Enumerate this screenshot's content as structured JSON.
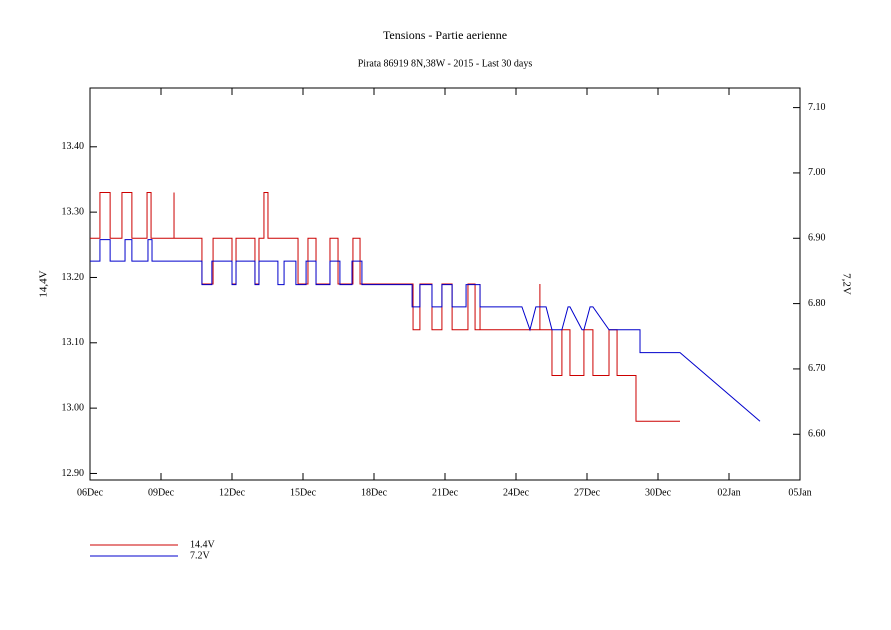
{
  "chart_data": {
    "type": "line",
    "title": "Tensions - Partie aerienne",
    "subtitle": "Pirata 86919 8N,38W - 2015 - Last 30 days",
    "ylabel": "14,4V",
    "y2label": "7,2V",
    "xlim": [
      0,
      30
    ],
    "xticks": [
      {
        "value": 0,
        "label": "06Dec"
      },
      {
        "value": 3,
        "label": "09Dec"
      },
      {
        "value": 6,
        "label": "12Dec"
      },
      {
        "value": 9,
        "label": "15Dec"
      },
      {
        "value": 12,
        "label": "18Dec"
      },
      {
        "value": 15,
        "label": "21Dec"
      },
      {
        "value": 18,
        "label": "24Dec"
      },
      {
        "value": 21,
        "label": "27Dec"
      },
      {
        "value": 24,
        "label": "30Dec"
      },
      {
        "value": 27,
        "label": "02Jan"
      },
      {
        "value": 30,
        "label": "05Jan"
      }
    ],
    "ylim": [
      12.89,
      13.49
    ],
    "yticks": [
      {
        "value": 12.9,
        "label": "12.90"
      },
      {
        "value": 13.0,
        "label": "13.00"
      },
      {
        "value": 13.1,
        "label": "13.10"
      },
      {
        "value": 13.2,
        "label": "13.20"
      },
      {
        "value": 13.3,
        "label": "13.30"
      },
      {
        "value": 13.4,
        "label": "13.40"
      }
    ],
    "y2lim": [
      6.53,
      7.13
    ],
    "y2ticks": [
      {
        "value": 6.6,
        "label": "6.60"
      },
      {
        "value": 6.7,
        "label": "6.70"
      },
      {
        "value": 6.8,
        "label": "6.80"
      },
      {
        "value": 6.9,
        "label": "6.90"
      },
      {
        "value": 7.0,
        "label": "7.00"
      },
      {
        "value": 7.1,
        "label": "7.10"
      }
    ],
    "legend": "bottom-left",
    "series": [
      {
        "name": "14.4V",
        "color": "#cc0000",
        "x": [
          0,
          0.42,
          0.42,
          0.85,
          0.85,
          1.35,
          1.35,
          1.77,
          1.77,
          2.41,
          2.41,
          2.58,
          2.58,
          3.55,
          3.55,
          3.55,
          4.73,
          4.73,
          5.2,
          5.2,
          6.0,
          6.0,
          6.17,
          6.17,
          6.97,
          6.97,
          7.14,
          7.14,
          7.35,
          7.35,
          7.52,
          7.52,
          8.79,
          8.79,
          9.21,
          9.21,
          9.55,
          9.55,
          10.14,
          10.14,
          10.48,
          10.48,
          11.11,
          11.11,
          11.41,
          11.41,
          13.65,
          13.65,
          13.94,
          13.94,
          14.45,
          14.45,
          14.87,
          14.87,
          15.3,
          15.3,
          15.97,
          15.97,
          16.27,
          16.27,
          16.48,
          16.48,
          16.48,
          19.01,
          19.01,
          19.01,
          19.52,
          19.52,
          19.94,
          19.94,
          20.28,
          20.28,
          20.87,
          20.87,
          21.25,
          21.25,
          21.93,
          21.93,
          22.27,
          22.27,
          23.07,
          23.07,
          24.93
        ],
        "values": [
          13.26,
          13.26,
          13.33,
          13.33,
          13.26,
          13.26,
          13.33,
          13.33,
          13.26,
          13.26,
          13.33,
          13.33,
          13.26,
          13.26,
          13.33,
          13.26,
          13.26,
          13.19,
          13.19,
          13.26,
          13.26,
          13.19,
          13.19,
          13.26,
          13.26,
          13.19,
          13.19,
          13.26,
          13.26,
          13.33,
          13.33,
          13.26,
          13.26,
          13.19,
          13.19,
          13.26,
          13.26,
          13.19,
          13.19,
          13.26,
          13.26,
          13.19,
          13.19,
          13.26,
          13.26,
          13.19,
          13.19,
          13.12,
          13.12,
          13.19,
          13.19,
          13.12,
          13.12,
          13.19,
          13.19,
          13.12,
          13.12,
          13.19,
          13.19,
          13.12,
          13.12,
          13.19,
          13.12,
          13.12,
          13.19,
          13.12,
          13.12,
          13.05,
          13.05,
          13.12,
          13.12,
          13.05,
          13.05,
          13.12,
          13.12,
          13.05,
          13.05,
          13.12,
          13.12,
          13.05,
          13.05,
          12.98,
          12.98
        ]
      },
      {
        "name": "7.2V",
        "color": "#0000cc",
        "axis": "y2",
        "x": [
          0,
          0.42,
          0.42,
          0.85,
          0.85,
          1.48,
          1.48,
          1.77,
          1.77,
          2.45,
          2.45,
          2.62,
          2.62,
          4.73,
          4.73,
          5.15,
          5.15,
          6.0,
          6.0,
          6.17,
          6.17,
          6.97,
          6.97,
          7.14,
          7.14,
          7.94,
          7.94,
          8.2,
          8.2,
          8.7,
          8.7,
          9.13,
          9.13,
          9.55,
          9.55,
          10.14,
          10.14,
          10.56,
          10.56,
          11.07,
          11.07,
          11.49,
          11.49,
          13.61,
          13.61,
          13.94,
          13.94,
          14.45,
          14.45,
          14.87,
          14.87,
          15.3,
          15.3,
          15.89,
          15.89,
          16.48,
          16.48,
          18.25,
          18.59,
          18.84,
          19.27,
          19.52,
          19.94,
          20.2,
          20.28,
          20.79,
          20.87,
          21.13,
          21.25,
          21.93,
          23.24,
          23.24,
          24.93,
          28.31
        ],
        "values": [
          6.865,
          6.865,
          6.898,
          6.898,
          6.865,
          6.865,
          6.898,
          6.898,
          6.865,
          6.865,
          6.898,
          6.898,
          6.865,
          6.865,
          6.829,
          6.829,
          6.865,
          6.865,
          6.829,
          6.829,
          6.865,
          6.865,
          6.829,
          6.829,
          6.865,
          6.865,
          6.829,
          6.829,
          6.865,
          6.865,
          6.829,
          6.829,
          6.865,
          6.865,
          6.829,
          6.829,
          6.865,
          6.865,
          6.829,
          6.829,
          6.865,
          6.865,
          6.829,
          6.829,
          6.795,
          6.795,
          6.829,
          6.829,
          6.795,
          6.795,
          6.829,
          6.829,
          6.795,
          6.795,
          6.829,
          6.829,
          6.795,
          6.795,
          6.76,
          6.795,
          6.795,
          6.76,
          6.76,
          6.795,
          6.795,
          6.76,
          6.76,
          6.795,
          6.795,
          6.76,
          6.76,
          6.725,
          6.725,
          6.62
        ]
      }
    ]
  }
}
